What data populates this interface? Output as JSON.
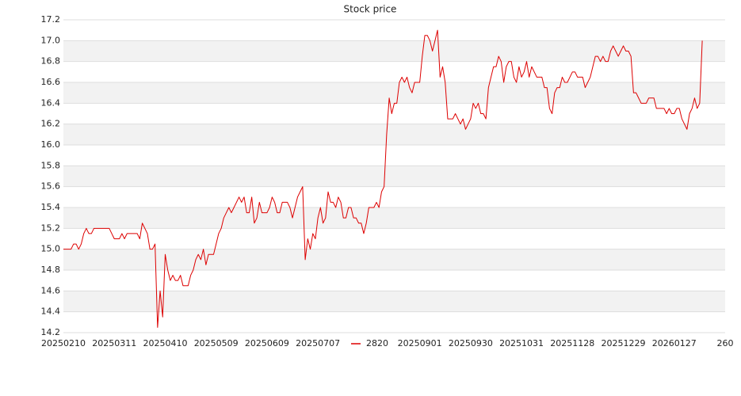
{
  "chart_data": {
    "type": "line",
    "title": "Stock price",
    "categories": [
      "20250210",
      null,
      null,
      null,
      null,
      null,
      null,
      null,
      null,
      null,
      null,
      null,
      null,
      null,
      null,
      null,
      null,
      null,
      null,
      null,
      "20250311",
      null,
      null,
      null,
      null,
      null,
      null,
      null,
      null,
      null,
      null,
      null,
      null,
      null,
      null,
      null,
      null,
      null,
      null,
      null,
      "20250410",
      null,
      null,
      null,
      null,
      null,
      null,
      null,
      null,
      null,
      null,
      null,
      null,
      null,
      null,
      null,
      null,
      null,
      null,
      null,
      "20250509",
      null,
      null,
      null,
      null,
      null,
      null,
      null,
      null,
      null,
      null,
      null,
      null,
      null,
      null,
      null,
      null,
      null,
      null,
      null,
      "20250609",
      null,
      null,
      null,
      null,
      null,
      null,
      null,
      null,
      null,
      null,
      null,
      null,
      null,
      null,
      null,
      null,
      null,
      null,
      null,
      "20250707",
      null,
      null,
      null,
      null,
      null,
      null,
      null,
      null,
      null,
      null,
      null,
      null,
      null,
      null,
      null,
      null,
      null,
      null,
      null,
      null,
      null,
      null,
      null,
      null,
      null,
      null,
      null,
      null,
      null,
      null,
      null,
      null,
      null,
      null,
      null,
      null,
      null,
      null,
      null,
      "20250901",
      null,
      null,
      null,
      null,
      null,
      null,
      null,
      null,
      null,
      null,
      null,
      null,
      null,
      null,
      null,
      null,
      null,
      null,
      null,
      "20250930",
      null,
      null,
      null,
      null,
      null,
      null,
      null,
      null,
      null,
      null,
      null,
      null,
      null,
      null,
      null,
      null,
      null,
      null,
      null,
      "20251031",
      null,
      null,
      null,
      null,
      null,
      null,
      null,
      null,
      null,
      null,
      null,
      null,
      null,
      null,
      null,
      null,
      null,
      null,
      null,
      "20251128",
      null,
      null,
      null,
      null,
      null,
      null,
      null,
      null,
      null,
      null,
      null,
      null,
      null,
      null,
      null,
      null,
      null,
      null,
      null,
      "20251229",
      null,
      null,
      null,
      null,
      null,
      null,
      null,
      null,
      null,
      null,
      null,
      null,
      null,
      null,
      null,
      null,
      null,
      null,
      null,
      "20260127",
      null,
      null,
      null,
      null,
      null,
      null,
      null,
      null,
      null,
      null,
      null,
      null,
      null,
      null,
      null,
      null,
      null,
      null,
      null,
      "260"
    ],
    "series": [
      {
        "name": "2820",
        "color": "#dd0000",
        "values": [
          15.0,
          15.0,
          15.0,
          15.0,
          15.05,
          15.05,
          15.0,
          15.05,
          15.15,
          15.2,
          15.15,
          15.15,
          15.2,
          15.2,
          15.2,
          15.2,
          15.2,
          15.2,
          15.2,
          15.15,
          15.1,
          15.1,
          15.1,
          15.15,
          15.1,
          15.15,
          15.15,
          15.15,
          15.15,
          15.15,
          15.1,
          15.25,
          15.2,
          15.15,
          15.0,
          15.0,
          15.05,
          14.25,
          14.6,
          14.35,
          14.95,
          14.8,
          14.7,
          14.75,
          14.7,
          14.7,
          14.75,
          14.65,
          14.65,
          14.65,
          14.75,
          14.8,
          14.9,
          14.95,
          14.9,
          15.0,
          14.85,
          14.95,
          14.95,
          14.95,
          15.05,
          15.15,
          15.2,
          15.3,
          15.35,
          15.4,
          15.35,
          15.4,
          15.45,
          15.5,
          15.45,
          15.5,
          15.35,
          15.35,
          15.5,
          15.25,
          15.3,
          15.45,
          15.35,
          15.35,
          15.35,
          15.4,
          15.5,
          15.45,
          15.35,
          15.35,
          15.45,
          15.45,
          15.45,
          15.4,
          15.3,
          15.4,
          15.5,
          15.55,
          15.6,
          14.9,
          15.1,
          15.0,
          15.15,
          15.1,
          15.3,
          15.4,
          15.25,
          15.3,
          15.55,
          15.45,
          15.45,
          15.4,
          15.5,
          15.45,
          15.3,
          15.3,
          15.4,
          15.4,
          15.3,
          15.3,
          15.25,
          15.25,
          15.15,
          15.25,
          15.4,
          15.4,
          15.4,
          15.45,
          15.4,
          15.55,
          15.6,
          16.1,
          16.45,
          16.3,
          16.4,
          16.4,
          16.6,
          16.65,
          16.6,
          16.65,
          16.55,
          16.5,
          16.6,
          16.6,
          16.6,
          16.85,
          17.05,
          17.05,
          17.0,
          16.9,
          17.0,
          17.1,
          16.65,
          16.75,
          16.6,
          16.25,
          16.25,
          16.25,
          16.3,
          16.25,
          16.2,
          16.25,
          16.15,
          16.2,
          16.25,
          16.4,
          16.35,
          16.4,
          16.3,
          16.3,
          16.25,
          16.55,
          16.65,
          16.75,
          16.75,
          16.85,
          16.8,
          16.6,
          16.75,
          16.8,
          16.8,
          16.65,
          16.6,
          16.75,
          16.65,
          16.7,
          16.8,
          16.65,
          16.75,
          16.7,
          16.65,
          16.65,
          16.65,
          16.55,
          16.55,
          16.35,
          16.3,
          16.5,
          16.55,
          16.55,
          16.65,
          16.6,
          16.6,
          16.65,
          16.7,
          16.7,
          16.65,
          16.65,
          16.65,
          16.55,
          16.6,
          16.65,
          16.75,
          16.85,
          16.85,
          16.8,
          16.85,
          16.8,
          16.8,
          16.9,
          16.95,
          16.9,
          16.85,
          16.9,
          16.95,
          16.9,
          16.9,
          16.85,
          16.5,
          16.5,
          16.45,
          16.4,
          16.4,
          16.4,
          16.45,
          16.45,
          16.45,
          16.35,
          16.35,
          16.35,
          16.35,
          16.3,
          16.35,
          16.3,
          16.3,
          16.35,
          16.35,
          16.25,
          16.2,
          16.15,
          16.3,
          16.35,
          16.45,
          16.35,
          16.4,
          17.0,
          null,
          null,
          null,
          null,
          null,
          null,
          null,
          null,
          null
        ]
      }
    ],
    "ylim": [
      14.2,
      17.2
    ],
    "yticks": [
      14.2,
      14.4,
      14.6,
      14.8,
      {
        "value": 15,
        "label": "15.0"
      },
      15.2,
      15.4,
      15.6,
      15.8,
      {
        "value": 16,
        "label": "16.0"
      },
      16.2,
      16.4,
      16.6,
      16.8,
      {
        "value": 17,
        "label": "17.0"
      },
      17.2
    ],
    "grid": true,
    "legend": "bottom"
  }
}
